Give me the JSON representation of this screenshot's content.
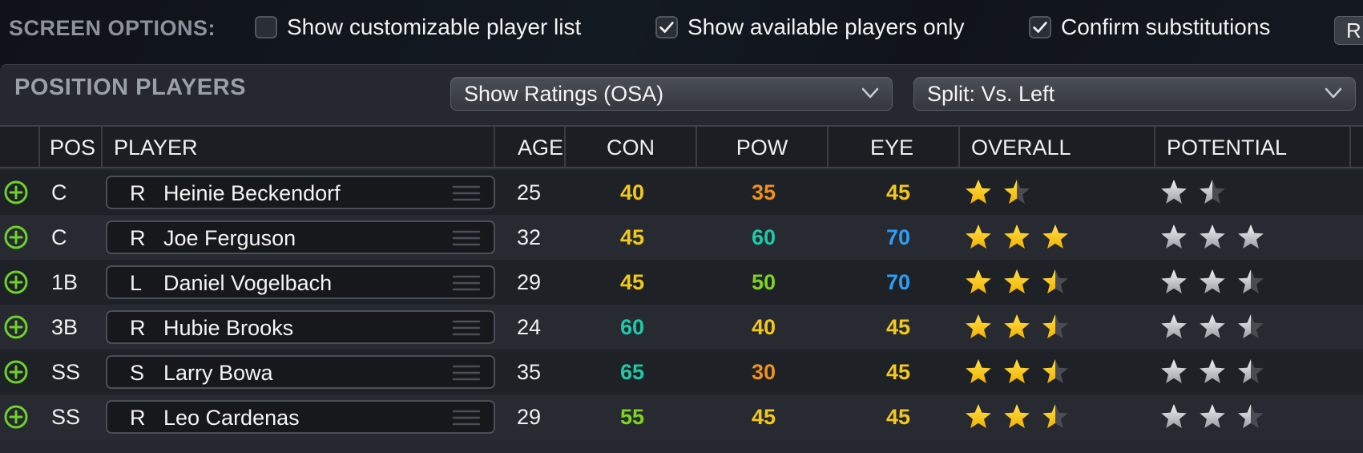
{
  "screen_options": {
    "label": "SCREEN OPTIONS:",
    "checkboxes": [
      {
        "label": "Show customizable player list",
        "checked": false
      },
      {
        "label": "Show available players only",
        "checked": true
      },
      {
        "label": "Confirm substitutions",
        "checked": true
      }
    ],
    "reset_label": "R"
  },
  "panel": {
    "title": "POSITION PLAYERS",
    "ratings_dropdown": "Show Ratings (OSA)",
    "split_dropdown": "Split: Vs. Left"
  },
  "columns": {
    "pos": "POS",
    "player": "PLAYER",
    "age": "AGE",
    "con": "CON",
    "pow": "POW",
    "eye": "EYE",
    "overall": "OVERALL",
    "potential": "POTENTIAL"
  },
  "rating_colors": {
    "30": "#f0901c",
    "35": "#f0901c",
    "40": "#f2c81a",
    "45": "#f2c81a",
    "50": "#7ed321",
    "55": "#7ed321",
    "60": "#1fc8a8",
    "65": "#1fc8a8",
    "70": "#2f9cf4"
  },
  "rows": [
    {
      "pos": "C",
      "bats": "R",
      "name": "Heinie Beckendorf",
      "age": "25",
      "con": "40",
      "pow": "35",
      "eye": "45",
      "overall": 1.5,
      "potential": 1.5
    },
    {
      "pos": "C",
      "bats": "R",
      "name": "Joe Ferguson",
      "age": "32",
      "con": "45",
      "pow": "60",
      "eye": "70",
      "overall": 3,
      "potential": 3
    },
    {
      "pos": "1B",
      "bats": "L",
      "name": "Daniel Vogelbach",
      "age": "29",
      "con": "45",
      "pow": "50",
      "eye": "70",
      "overall": 2.5,
      "potential": 2.5
    },
    {
      "pos": "3B",
      "bats": "R",
      "name": "Hubie Brooks",
      "age": "24",
      "con": "60",
      "pow": "40",
      "eye": "45",
      "overall": 2.5,
      "potential": 2.5
    },
    {
      "pos": "SS",
      "bats": "S",
      "name": "Larry Bowa",
      "age": "35",
      "con": "65",
      "pow": "30",
      "eye": "45",
      "overall": 2.5,
      "potential": 2.5
    },
    {
      "pos": "SS",
      "bats": "R",
      "name": "Leo Cardenas",
      "age": "29",
      "con": "55",
      "pow": "45",
      "eye": "45",
      "overall": 2.5,
      "potential": 2.5
    }
  ]
}
